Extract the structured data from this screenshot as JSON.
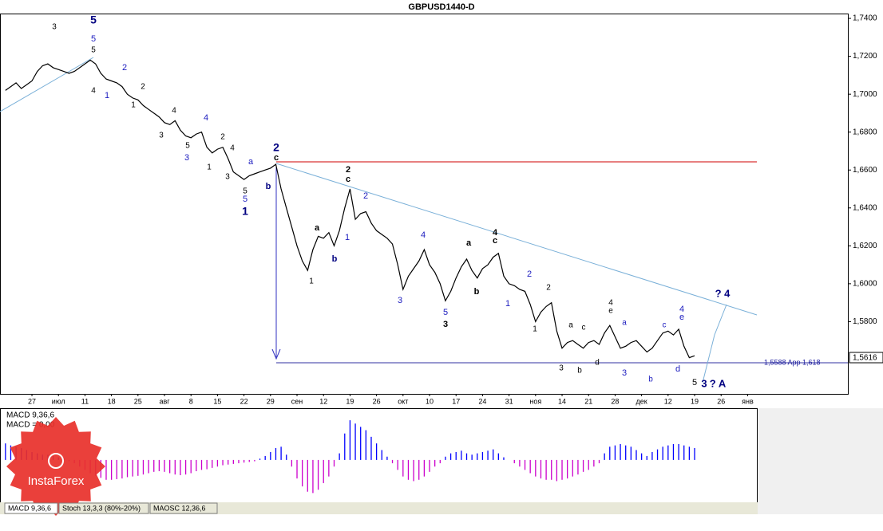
{
  "chart_data": [
    {
      "type": "line",
      "title": "GBPUSD1440-D",
      "color": "#000000",
      "categories": [
        null,
        null,
        null,
        null,
        null,
        "27",
        null,
        null,
        null,
        null,
        "июл",
        null,
        null,
        null,
        null,
        "11",
        null,
        null,
        null,
        null,
        "18",
        null,
        null,
        null,
        null,
        "25",
        null,
        null,
        null,
        null,
        "авг",
        null,
        null,
        null,
        null,
        "8",
        null,
        null,
        null,
        null,
        "15",
        null,
        null,
        null,
        null,
        "22",
        null,
        null,
        null,
        null,
        "29",
        null,
        null,
        null,
        null,
        "сен",
        null,
        null,
        null,
        null,
        "12",
        null,
        null,
        null,
        null,
        "19",
        null,
        null,
        null,
        null,
        "26",
        null,
        null,
        null,
        null,
        "окт",
        null,
        null,
        null,
        null,
        "10",
        null,
        null,
        null,
        null,
        "17",
        null,
        null,
        null,
        null,
        "24",
        null,
        null,
        null,
        null,
        "31",
        null,
        null,
        null,
        null,
        "ноя",
        null,
        null,
        null,
        null,
        "14",
        null,
        null,
        null,
        null,
        "21",
        null,
        null,
        null,
        null,
        "28",
        null,
        null,
        null,
        null,
        "дек",
        null,
        null,
        null,
        null,
        "12",
        null,
        null,
        null,
        null,
        "19",
        null,
        null,
        null,
        null,
        "26",
        null,
        null,
        null,
        null,
        "янв",
        null,
        null
      ],
      "values": [
        1.702,
        1.704,
        1.706,
        1.703,
        1.705,
        1.707,
        1.712,
        1.715,
        1.716,
        1.714,
        1.713,
        1.712,
        1.711,
        1.712,
        1.714,
        1.716,
        1.718,
        1.716,
        1.711,
        1.708,
        1.707,
        1.706,
        1.704,
        1.7,
        1.698,
        1.697,
        1.694,
        1.692,
        1.69,
        1.688,
        1.685,
        1.684,
        1.686,
        1.681,
        1.678,
        1.677,
        1.679,
        1.68,
        1.672,
        1.669,
        1.671,
        1.672,
        1.666,
        1.659,
        1.657,
        1.655,
        1.657,
        1.658,
        1.659,
        1.66,
        1.661,
        1.663,
        1.65,
        1.64,
        1.63,
        1.62,
        1.612,
        1.607,
        1.618,
        1.625,
        1.624,
        1.627,
        1.62,
        1.628,
        1.64,
        1.65,
        1.634,
        1.637,
        1.638,
        1.632,
        1.628,
        1.626,
        1.624,
        1.621,
        1.61,
        1.597,
        1.604,
        1.608,
        1.612,
        1.618,
        1.61,
        1.606,
        1.6,
        1.591,
        1.596,
        1.603,
        1.609,
        1.613,
        1.607,
        1.603,
        1.608,
        1.61,
        1.614,
        1.616,
        1.604,
        1.6,
        1.599,
        1.597,
        1.596,
        1.589,
        1.58,
        1.585,
        1.588,
        1.59,
        1.575,
        1.566,
        1.569,
        1.57,
        1.568,
        1.566,
        1.569,
        1.57,
        1.568,
        1.574,
        1.578,
        1.572,
        1.566,
        1.567,
        1.569,
        1.57,
        1.567,
        1.564,
        1.566,
        1.57,
        1.574,
        1.575,
        1.573,
        1.576,
        1.567,
        1.561,
        1.562,
        null,
        null,
        null,
        null,
        null,
        null,
        null,
        null,
        null,
        null,
        null,
        null
      ],
      "ylim": [
        1.5419,
        1.7497
      ],
      "yticks": [
        {
          "value": 1.58,
          "label": "1,5800"
        },
        {
          "value": 1.6,
          "label": "1,6000"
        },
        {
          "value": 1.62,
          "label": "1,6200"
        },
        {
          "value": 1.64,
          "label": "1,6400"
        },
        {
          "value": 1.66,
          "label": "1,6600"
        },
        {
          "value": 1.68,
          "label": "1,6800"
        },
        {
          "value": 1.7,
          "label": "1,7000"
        },
        {
          "value": 1.72,
          "label": "1,7200"
        },
        {
          "value": 1.74,
          "label": "1,7400"
        }
      ],
      "last_price_label": "1,5616",
      "level_label": "1,5588 App 1,618",
      "annotations": [
        "5",
        "5",
        "5",
        "3",
        "2",
        "4",
        "1",
        "2",
        "1",
        "4",
        "3",
        "5",
        "3",
        "4",
        "2",
        "4",
        "1",
        "3",
        "a",
        "5",
        "5",
        "1",
        "b",
        "2",
        "c",
        "1",
        "a",
        "b",
        "1",
        "2",
        "c",
        "2",
        "3",
        "4",
        "5",
        "3",
        "a",
        "b",
        "4",
        "c",
        "1",
        "2",
        "2",
        "1",
        "a",
        "c",
        "3",
        "b",
        "d",
        "4",
        "e",
        "a",
        "3",
        "b",
        "c",
        "4",
        "e",
        "d",
        "5",
        "3",
        "? 4",
        "? A"
      ]
    },
    {
      "type": "histogram",
      "labels": [
        "MACD 9,36,6",
        "MACD = 0,00"
      ],
      "positive_color": "#0000ff",
      "negative_color": "#cc00cc",
      "ylim": [
        -64,
        77
      ],
      "values": [
        25,
        22,
        20,
        18,
        15,
        12,
        10,
        8,
        8,
        6,
        4,
        2,
        -2,
        -5,
        -10,
        -15,
        -20,
        -24,
        -27,
        -30,
        -30,
        -29,
        -28,
        -26,
        -25,
        -24,
        -22,
        -20,
        -18,
        -17,
        -18,
        -20,
        -22,
        -23,
        -22,
        -20,
        -17,
        -15,
        -14,
        -12,
        -10,
        -8,
        -7,
        -6,
        -5,
        -4,
        -3,
        -2,
        2,
        6,
        12,
        18,
        20,
        8,
        -10,
        -28,
        -40,
        -48,
        -50,
        -45,
        -35,
        -25,
        -10,
        10,
        40,
        60,
        55,
        50,
        45,
        35,
        25,
        15,
        5,
        -5,
        -15,
        -25,
        -30,
        -32,
        -30,
        -25,
        -18,
        -10,
        -5,
        5,
        10,
        12,
        14,
        10,
        8,
        10,
        12,
        14,
        16,
        10,
        4,
        0,
        -5,
        -10,
        -15,
        -20,
        -25,
        -28,
        -30,
        -30,
        -32,
        -30,
        -28,
        -25,
        -22,
        -18,
        -15,
        -10,
        -5,
        10,
        20,
        22,
        24,
        22,
        20,
        15,
        10,
        6,
        12,
        16,
        20,
        22,
        24,
        24,
        22,
        20,
        18,
        null,
        null,
        null,
        null,
        null,
        null,
        null,
        null,
        null,
        null,
        null,
        null
      ]
    }
  ],
  "tabs": [
    "MACD 9,36,6",
    "Stoch 13,3,3 (80%-20%)",
    "MAOSC 12,36,6"
  ],
  "logo": "InstaForex"
}
